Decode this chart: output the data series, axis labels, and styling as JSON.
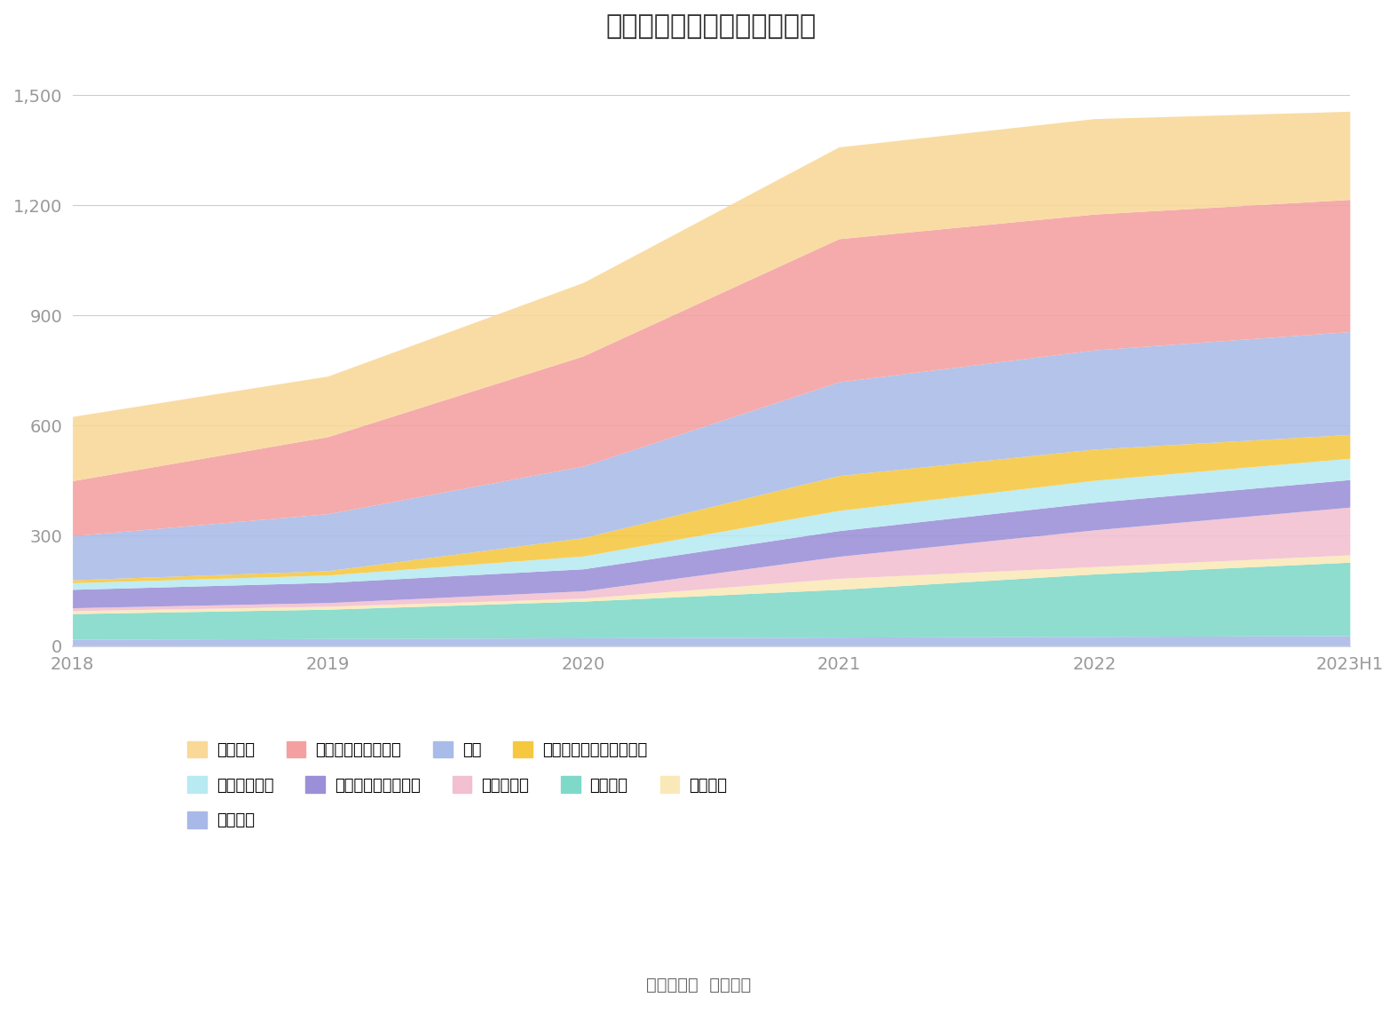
{
  "title": "历年主要资产堆积图（亿元）",
  "source": "数据来源：  恒生聚源",
  "years": [
    "2018",
    "2019",
    "2020",
    "2021",
    "2022",
    "2023H1"
  ],
  "series": [
    {
      "name": "无形资产",
      "color": "#A8B8E8",
      "values": [
        18,
        20,
        22,
        24,
        26,
        28
      ]
    },
    {
      "name": "固定资产",
      "color": "#7FD9C9",
      "values": [
        70,
        80,
        100,
        130,
        170,
        200
      ]
    },
    {
      "name": "在建工程",
      "color": "#FAE9B8",
      "values": [
        8,
        8,
        8,
        30,
        20,
        20
      ]
    },
    {
      "name": "长期应收款",
      "color": "#F2C0D0",
      "values": [
        8,
        10,
        20,
        60,
        100,
        130
      ]
    },
    {
      "name": "交易性金融资产合计",
      "color": "#9B90D8",
      "values": [
        50,
        55,
        60,
        70,
        75,
        75
      ]
    },
    {
      "name": "其它流动资产",
      "color": "#B8EAF2",
      "values": [
        18,
        20,
        35,
        55,
        60,
        58
      ]
    },
    {
      "name": "一年内到期的非流动资产",
      "color": "#F5C840",
      "values": [
        8,
        12,
        50,
        95,
        85,
        65
      ]
    },
    {
      "name": "存货",
      "color": "#A9BBE8",
      "values": [
        120,
        155,
        195,
        255,
        270,
        280
      ]
    },
    {
      "name": "应收账款及应收票据",
      "color": "#F4A0A0",
      "values": [
        150,
        210,
        300,
        390,
        370,
        360
      ]
    },
    {
      "name": "货币资金",
      "color": "#F9D898",
      "values": [
        175,
        165,
        200,
        250,
        260,
        240
      ]
    }
  ],
  "ylim": [
    0,
    1600
  ],
  "yticks": [
    0,
    300,
    600,
    900,
    1200,
    1500
  ],
  "ytick_labels": [
    "0",
    "300",
    "600",
    "900",
    "1,200",
    "1,500"
  ],
  "background_color": "#ffffff",
  "grid_color": "#c8cce0",
  "title_fontsize": 22,
  "legend_fontsize": 13,
  "tick_fontsize": 14
}
